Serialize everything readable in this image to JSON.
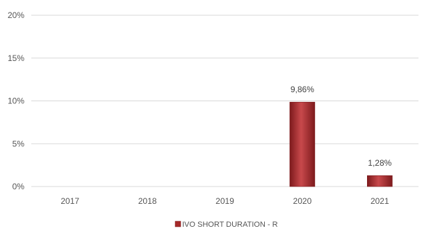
{
  "chart_data": {
    "type": "bar",
    "categories": [
      "2017",
      "2018",
      "2019",
      "2020",
      "2021"
    ],
    "series": [
      {
        "name": "IVO SHORT DURATION - R",
        "values": [
          null,
          null,
          null,
          9.86,
          1.28
        ],
        "data_labels": [
          "",
          "",
          "",
          "9,86%",
          "1,28%"
        ]
      }
    ],
    "ylim": [
      0,
      20
    ],
    "yticks": [
      0,
      5,
      10,
      15,
      20
    ],
    "ytick_labels": [
      "0%",
      "5%",
      "10%",
      "15%",
      "20%"
    ],
    "grid": true,
    "legend_position": "bottom",
    "colors": {
      "bar": "#a52a2a",
      "bar_light": "#c8494c",
      "bar_dark": "#7d1a1c",
      "grid": "#d9d9d9"
    }
  }
}
